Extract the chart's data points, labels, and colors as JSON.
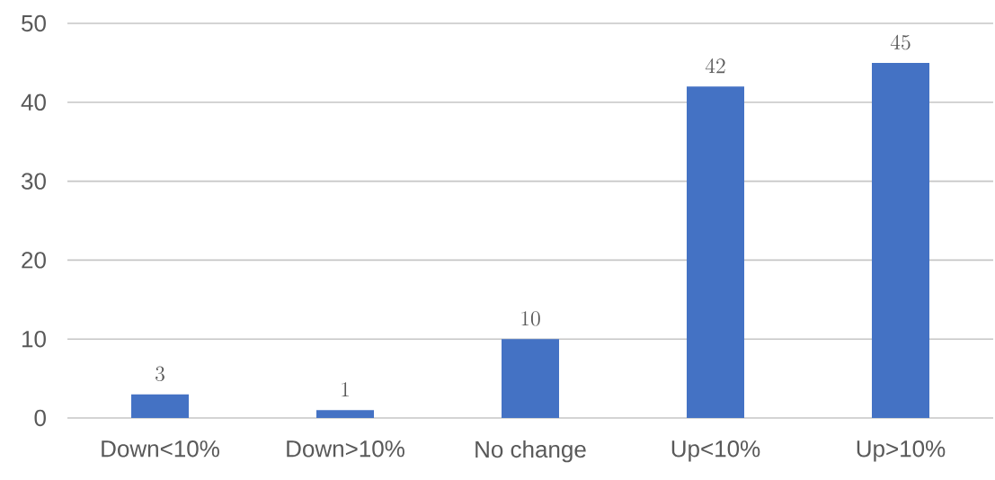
{
  "chart_data": {
    "type": "bar",
    "categories": [
      "Down<10%",
      "Down>10%",
      "No change",
      "Up<10%",
      "Up>10%"
    ],
    "values": [
      3,
      1,
      10,
      42,
      45
    ],
    "color": "#4472c4",
    "ylim": [
      0,
      50
    ],
    "yticks": [
      0,
      10,
      20,
      30,
      40,
      50
    ],
    "grid": "y",
    "data_labels": true
  }
}
